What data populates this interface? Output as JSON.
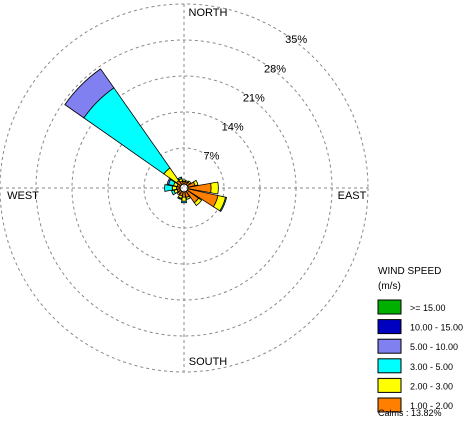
{
  "chart_data": {
    "type": "wind-rose",
    "directions": [
      "N",
      "NNE",
      "NE",
      "ENE",
      "E",
      "ESE",
      "SE",
      "SSE",
      "S",
      "SSW",
      "SW",
      "WSW",
      "W",
      "WNW",
      "NW",
      "NNW"
    ],
    "compass_labels": {
      "north": "NORTH",
      "east": "EAST",
      "south": "SOUTH",
      "west": "WEST"
    },
    "ring_values": [
      7,
      14,
      21,
      28,
      35
    ],
    "ring_labels": [
      "7%",
      "14%",
      "21%",
      "28%",
      "35%"
    ],
    "legend": {
      "title_line1": "WIND SPEED",
      "title_line2": "(m/s)",
      "placement": "bottom-right",
      "bins": [
        {
          "label": ">= 15.00",
          "color": "#00b000"
        },
        {
          "label": "10.00 - 15.00",
          "color": "#0000c0"
        },
        {
          "label": "5.00 - 10.00",
          "color": "#8080f0"
        },
        {
          "label": "3.00 - 5.00",
          "color": "#00ffff"
        },
        {
          "label": "2.00 - 3.00",
          "color": "#ffff00"
        },
        {
          "label": "1.00 - 2.00",
          "color": "#ff8000"
        }
      ]
    },
    "calms_text": "Calms : 13.82%",
    "series_percent": {
      "N": [
        0,
        0,
        0,
        0,
        0.3,
        0.5
      ],
      "NNE": [
        0,
        0,
        0,
        0,
        0.2,
        0.5
      ],
      "NE": [
        0,
        0,
        0,
        0,
        0.3,
        0.6
      ],
      "ENE": [
        0,
        0,
        0,
        0,
        0.6,
        1.4
      ],
      "E": [
        0,
        0,
        0,
        0,
        1.4,
        4.5
      ],
      "ESE": [
        0,
        0,
        0,
        0.2,
        1.5,
        6.0
      ],
      "SE": [
        0,
        0,
        0,
        0,
        0.7,
        2.7
      ],
      "SSE": [
        0,
        0,
        0,
        0,
        0.4,
        1.1
      ],
      "S": [
        0,
        0,
        0,
        0.3,
        0.8,
        1.0
      ],
      "SSW": [
        0,
        0,
        0,
        0.2,
        0.5,
        0.8
      ],
      "SW": [
        0,
        0,
        0,
        0,
        0.3,
        0.6
      ],
      "WSW": [
        0,
        0,
        0,
        0.5,
        0.6,
        0.6
      ],
      "W": [
        0,
        0,
        0,
        1.5,
        0.8,
        0.7
      ],
      "WNW": [
        0,
        0,
        0.3,
        1.0,
        0.7,
        0.6
      ],
      "NW": [
        0,
        0,
        4.5,
        19.0,
        3.0,
        1.0
      ],
      "NNW": [
        0,
        0,
        0,
        0.3,
        0.5,
        0.6
      ]
    }
  }
}
